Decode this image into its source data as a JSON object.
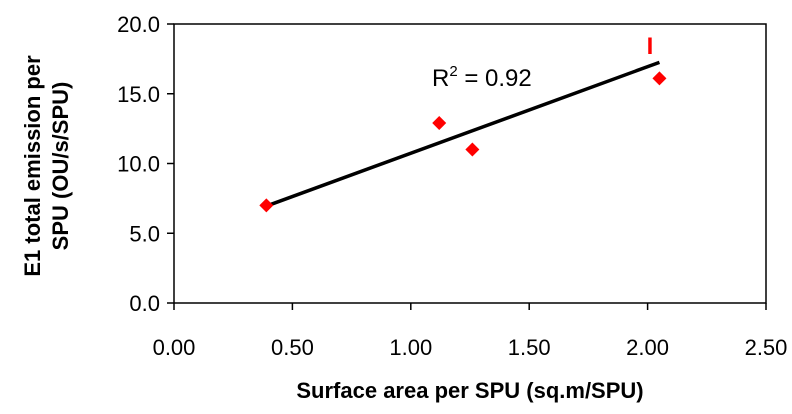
{
  "chart_data": {
    "type": "scatter",
    "xlabel": "Surface area per SPU (sq.m/SPU)",
    "ylabel_lines": [
      "E1  total emission per",
      "SPU (OU/s/SPU)"
    ],
    "xlim": [
      0,
      2.5
    ],
    "ylim": [
      0,
      20
    ],
    "x_ticks": [
      "0.00",
      "0.50",
      "1.00",
      "1.50",
      "2.00",
      "2.50"
    ],
    "y_ticks": [
      "0.0",
      "5.0",
      "10.0",
      "15.0",
      "20.0"
    ],
    "series": [
      {
        "marker": "diamond",
        "color": "#ff0000",
        "points": [
          {
            "x": 0.39,
            "y": 7.0
          },
          {
            "x": 1.12,
            "y": 12.9
          },
          {
            "x": 1.26,
            "y": 11.0
          },
          {
            "x": 2.05,
            "y": 16.1
          }
        ]
      }
    ],
    "trendline": {
      "type": "linear",
      "color": "#000000",
      "x_start": 0.39,
      "y_start": 6.95,
      "x_end": 2.05,
      "y_end": 17.25
    },
    "annotations": {
      "r2_prefix": "R",
      "r2_sup": "2",
      "r2_value": " = 0.92",
      "marker_label": "I",
      "marker_label_color": "#ff0000"
    },
    "grid": false,
    "legend": "none"
  }
}
